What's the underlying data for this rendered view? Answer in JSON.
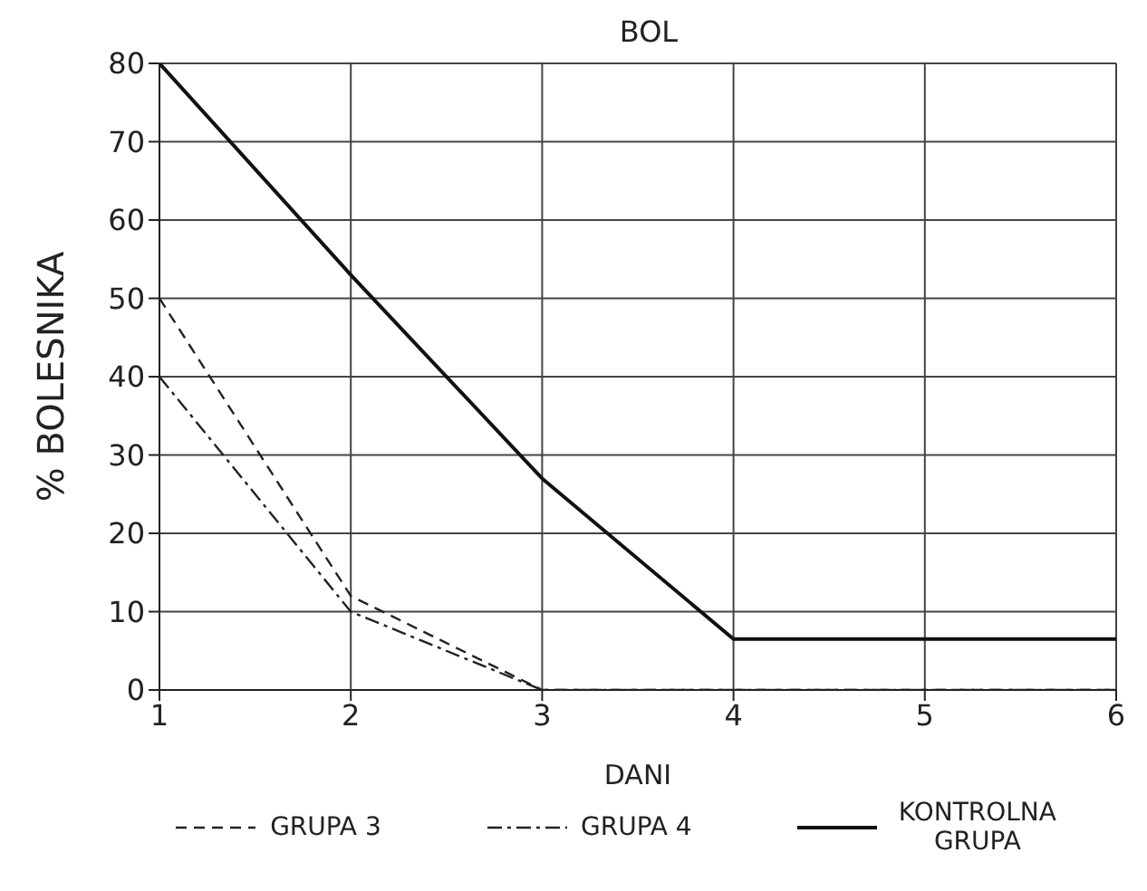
{
  "chart_data": {
    "type": "line",
    "title": "BOL",
    "xlabel": "DANI",
    "ylabel": "% BOLESNIKA",
    "x": [
      1,
      2,
      3,
      4,
      5,
      6
    ],
    "xlim": [
      1,
      6
    ],
    "xticks": [
      1,
      2,
      3,
      4,
      5,
      6
    ],
    "ylim": [
      0,
      80
    ],
    "yticks": [
      0,
      10,
      20,
      30,
      40,
      50,
      60,
      70,
      80
    ],
    "grid": true,
    "legend": "bottom",
    "marker": "none",
    "series": [
      {
        "name": "GRUPA 3",
        "color": "#222222",
        "line_style": "dashed",
        "values": [
          50,
          12,
          0,
          0,
          0,
          0
        ]
      },
      {
        "name": "GRUPA 4",
        "color": "#222222",
        "line_style": "dashdot",
        "values": [
          40,
          10,
          0,
          0,
          0,
          0
        ]
      },
      {
        "name": "KONTROLNA GRUPA",
        "color": "#111111",
        "line_style": "solid",
        "values": [
          80,
          53,
          27,
          6.5,
          6.5,
          6.5
        ]
      }
    ]
  }
}
